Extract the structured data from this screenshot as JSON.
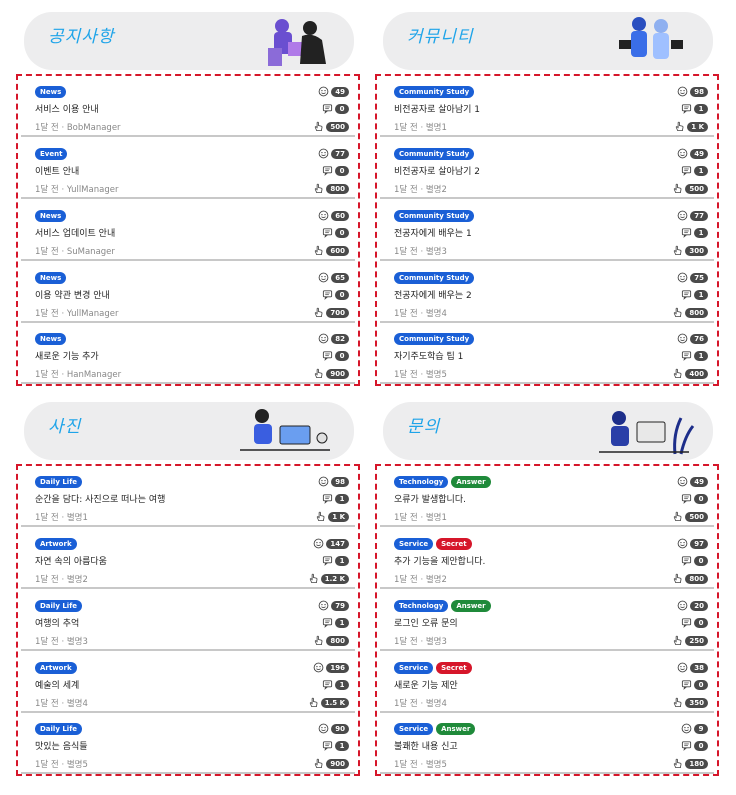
{
  "sections": [
    {
      "title": "공지사항",
      "illustration": "puzzle-people-illustration",
      "posts": [
        {
          "tags": [
            {
              "label": "News",
              "color": "blue"
            }
          ],
          "title": "서비스 이용 안내",
          "meta": "1달 전 · BobManager",
          "likes": "49",
          "comments": "0",
          "views": "500"
        },
        {
          "tags": [
            {
              "label": "Event",
              "color": "blue"
            }
          ],
          "title": "이벤트 안내",
          "meta": "1달 전 · YullManager",
          "likes": "77",
          "comments": "0",
          "views": "800"
        },
        {
          "tags": [
            {
              "label": "News",
              "color": "blue"
            }
          ],
          "title": "서비스 업데이트 안내",
          "meta": "1달 전 · SuManager",
          "likes": "60",
          "comments": "0",
          "views": "600"
        },
        {
          "tags": [
            {
              "label": "News",
              "color": "blue"
            }
          ],
          "title": "이용 약관 변경 안내",
          "meta": "1달 전 · YullManager",
          "likes": "65",
          "comments": "0",
          "views": "700"
        },
        {
          "tags": [
            {
              "label": "News",
              "color": "blue"
            }
          ],
          "title": "새로운 기능 추가",
          "meta": "1달 전 · HanManager",
          "likes": "82",
          "comments": "0",
          "views": "900"
        }
      ]
    },
    {
      "title": "커뮤니티",
      "illustration": "people-with-tablets-illustration",
      "posts": [
        {
          "tags": [
            {
              "label": "Community Study",
              "color": "blue"
            }
          ],
          "title": "비전공자로 살아남기 1",
          "meta": "1달 전 · 별명1",
          "likes": "98",
          "comments": "1",
          "views": "1 K"
        },
        {
          "tags": [
            {
              "label": "Community Study",
              "color": "blue"
            }
          ],
          "title": "비전공자로 살아남기 2",
          "meta": "1달 전 · 별명2",
          "likes": "49",
          "comments": "1",
          "views": "500"
        },
        {
          "tags": [
            {
              "label": "Community Study",
              "color": "blue"
            }
          ],
          "title": "전공자에게 배우는 1",
          "meta": "1달 전 · 별명3",
          "likes": "77",
          "comments": "1",
          "views": "300"
        },
        {
          "tags": [
            {
              "label": "Community Study",
              "color": "blue"
            }
          ],
          "title": "전공자에게 배우는 2",
          "meta": "1달 전 · 별명4",
          "likes": "75",
          "comments": "1",
          "views": "800"
        },
        {
          "tags": [
            {
              "label": "Community Study",
              "color": "blue"
            }
          ],
          "title": "자기주도학습 팁 1",
          "meta": "1달 전 · 별명5",
          "likes": "76",
          "comments": "1",
          "views": "400"
        }
      ]
    },
    {
      "title": "사진",
      "illustration": "person-at-desk-illustration",
      "posts": [
        {
          "tags": [
            {
              "label": "Daily Life",
              "color": "blue"
            }
          ],
          "title": "순간을 담다: 사진으로 떠나는 여행",
          "meta": "1달 전 · 별명1",
          "likes": "98",
          "comments": "1",
          "views": "1 K"
        },
        {
          "tags": [
            {
              "label": "Artwork",
              "color": "blue"
            }
          ],
          "title": "자연 속의 아름다움",
          "meta": "1달 전 · 별명2",
          "likes": "147",
          "comments": "1",
          "views": "1.2 K"
        },
        {
          "tags": [
            {
              "label": "Daily Life",
              "color": "blue"
            }
          ],
          "title": "여행의 추억",
          "meta": "1달 전 · 별명3",
          "likes": "79",
          "comments": "1",
          "views": "800"
        },
        {
          "tags": [
            {
              "label": "Artwork",
              "color": "blue"
            }
          ],
          "title": "예술의 세계",
          "meta": "1달 전 · 별명4",
          "likes": "196",
          "comments": "1",
          "views": "1.5 K"
        },
        {
          "tags": [
            {
              "label": "Daily Life",
              "color": "blue"
            }
          ],
          "title": "맛있는 음식들",
          "meta": "1달 전 · 별명5",
          "likes": "90",
          "comments": "1",
          "views": "900"
        }
      ]
    },
    {
      "title": "문의",
      "illustration": "person-with-monitor-illustration",
      "posts": [
        {
          "tags": [
            {
              "label": "Technology",
              "color": "blue"
            },
            {
              "label": "Answer",
              "color": "green"
            }
          ],
          "title": "오류가 발생합니다.",
          "meta": "1달 전 · 별명1",
          "likes": "49",
          "comments": "0",
          "views": "500"
        },
        {
          "tags": [
            {
              "label": "Service",
              "color": "blue"
            },
            {
              "label": "Secret",
              "color": "red"
            }
          ],
          "title": "추가 기능을 제안합니다.",
          "meta": "1달 전 · 별명2",
          "likes": "97",
          "comments": "0",
          "views": "800"
        },
        {
          "tags": [
            {
              "label": "Technology",
              "color": "blue"
            },
            {
              "label": "Answer",
              "color": "green"
            }
          ],
          "title": "로그인 오류 문의",
          "meta": "1달 전 · 별명3",
          "likes": "20",
          "comments": "0",
          "views": "250"
        },
        {
          "tags": [
            {
              "label": "Service",
              "color": "blue"
            },
            {
              "label": "Secret",
              "color": "red"
            }
          ],
          "title": "새로운 기능 제안",
          "meta": "1달 전 · 별명4",
          "likes": "38",
          "comments": "0",
          "views": "350"
        },
        {
          "tags": [
            {
              "label": "Service",
              "color": "blue"
            },
            {
              "label": "Answer",
              "color": "green"
            }
          ],
          "title": "불쾌한 내용 신고",
          "meta": "1달 전 · 별명5",
          "likes": "9",
          "comments": "0",
          "views": "180"
        }
      ]
    }
  ],
  "colors": {
    "accent": "#1ea4e9",
    "tag_blue": "#1a5fd6",
    "tag_red": "#d6162a",
    "tag_green": "#1f8a3a",
    "dashed_border": "#d6162a",
    "pill": "#4a4a4a"
  },
  "icons": {
    "likes": "smile-icon",
    "comments": "comment-icon",
    "views": "hand-pointer-icon"
  }
}
